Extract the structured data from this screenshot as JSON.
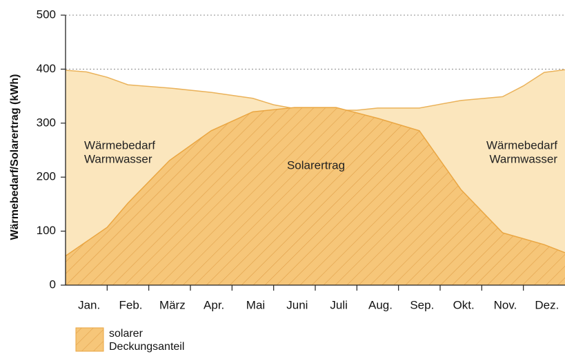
{
  "chart_data": {
    "type": "area",
    "ylabel": "Wärmebedarf/Solarertrag (kWh)",
    "categories": [
      "Jan.",
      "Feb.",
      "März",
      "Apr.",
      "Mai",
      "Juni",
      "Juli",
      "Aug.",
      "Sep.",
      "Okt.",
      "Nov.",
      "Dez."
    ],
    "xlim": [
      0,
      12
    ],
    "ylim": [
      0,
      500
    ],
    "yticks": [
      0,
      100,
      200,
      300,
      400,
      500
    ],
    "grid": true,
    "series": [
      {
        "color": "#fbe6bd",
        "line": "#eab25a",
        "x": [
          0,
          0.5,
          1,
          1.5,
          2.5,
          3.5,
          4.5,
          5,
          5.5,
          6.5,
          7,
          7.5,
          8.5,
          9.5,
          10.5,
          11,
          11.5,
          12
        ],
        "values": [
          398,
          395,
          385,
          371,
          365,
          357,
          346,
          334,
          327,
          324,
          324,
          328,
          328,
          342,
          349,
          369,
          394,
          399
        ]
      },
      {
        "color": "#f6c679",
        "line": "#eaa642",
        "hatch": true,
        "legend": [
          "solarer",
          "Deckungsanteil"
        ],
        "x": [
          0,
          1,
          1.5,
          2.5,
          3.5,
          4.5,
          5.5,
          6.5,
          7.5,
          8.5,
          9.5,
          10.5,
          11.5,
          12
        ],
        "values": [
          54,
          107,
          152,
          231,
          286,
          321,
          329,
          329,
          309,
          286,
          177,
          97,
          75,
          60
        ]
      }
    ],
    "annotations": [
      [
        "Wärmebedarf",
        "Warmwasser"
      ],
      [
        "Solarertrag"
      ],
      [
        "Wärmebedarf",
        "Warmwasser"
      ]
    ]
  }
}
